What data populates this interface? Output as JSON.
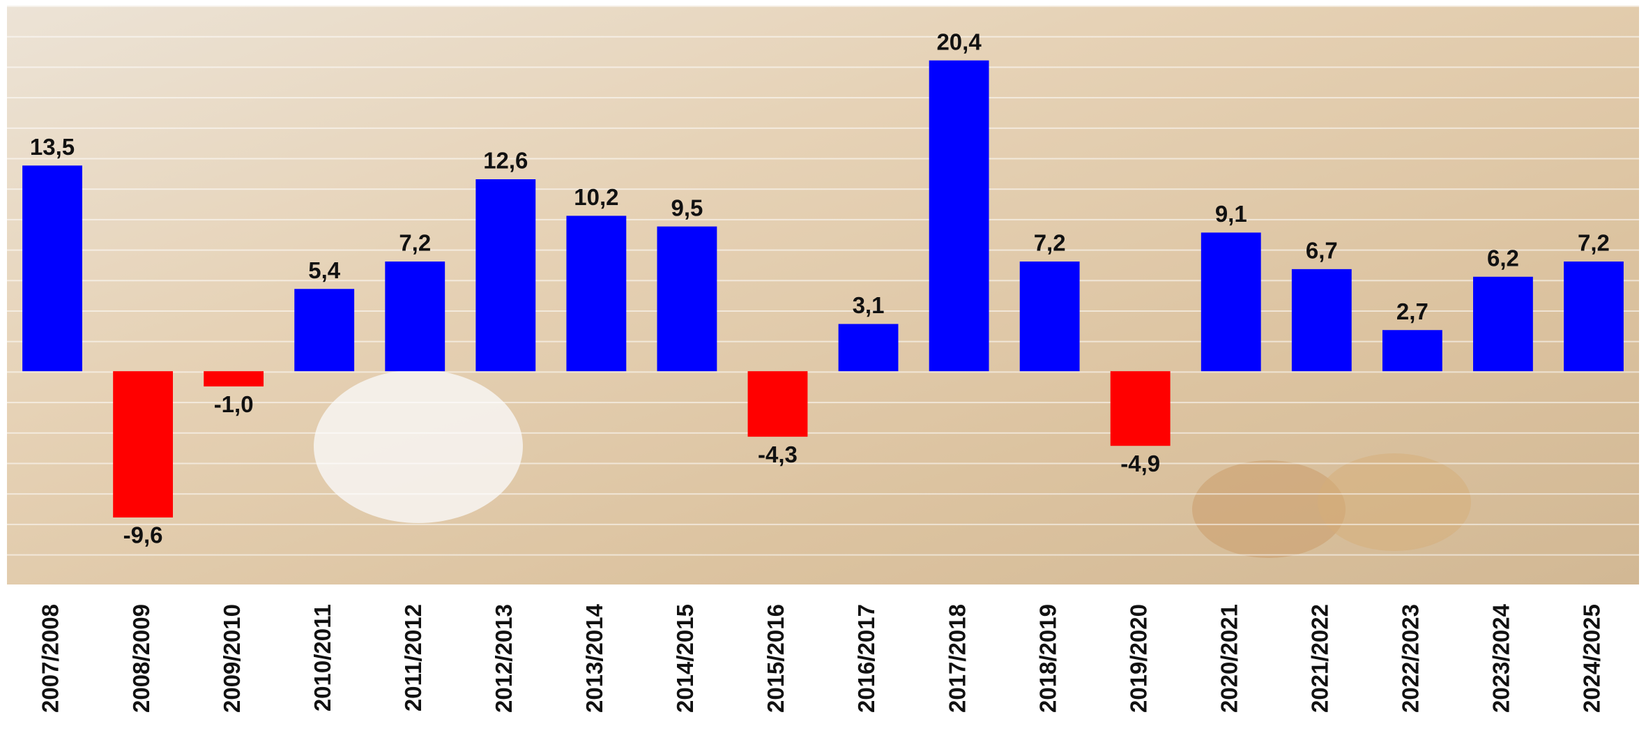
{
  "chart_data": {
    "type": "bar",
    "categories": [
      "2007/2008",
      "2008/2009",
      "2009/2010",
      "2010/2011",
      "2011/2012",
      "2012/2013",
      "2013/2014",
      "2014/2015",
      "2015/2016",
      "2016/2017",
      "2017/2018",
      "2018/2019",
      "2019/2020",
      "2020/2021",
      "2021/2022",
      "2022/2023",
      "2023/2024",
      "2024/2025"
    ],
    "values": [
      13.5,
      -9.6,
      -1.0,
      5.4,
      7.2,
      12.6,
      10.2,
      9.5,
      -4.3,
      3.1,
      20.4,
      7.2,
      -4.9,
      9.1,
      6.7,
      2.7,
      6.2,
      7.2
    ],
    "value_labels": [
      "13,5",
      "-9,6",
      "-1,0",
      "5,4",
      "7,2",
      "12,6",
      "10,2",
      "9,5",
      "-4,3",
      "3,1",
      "20,4",
      "7,2",
      "-4,9",
      "9,1",
      "6,7",
      "2,7",
      "6,2",
      "7,2"
    ],
    "colors": [
      "#0000ff",
      "#ff0000",
      "#ff0000",
      "#0000ff",
      "#0000ff",
      "#0000ff",
      "#0000ff",
      "#0000ff",
      "#ff0000",
      "#0000ff",
      "#0000ff",
      "#0000ff",
      "#ff0000",
      "#0000ff",
      "#0000ff",
      "#0000ff",
      "#0000ff",
      "#0000ff"
    ],
    "ylim": [
      -14,
      24
    ]
  }
}
